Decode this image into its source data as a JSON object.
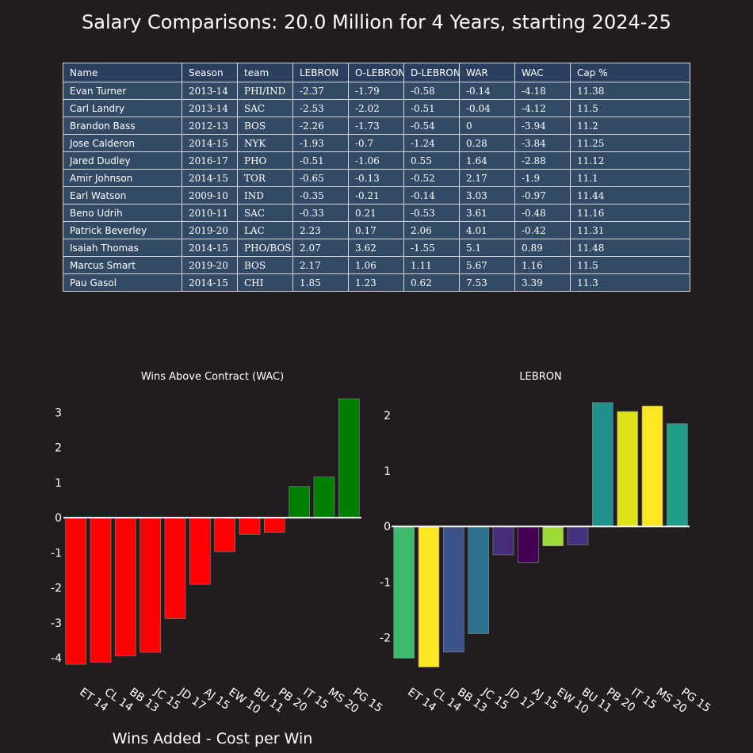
{
  "title": "Salary Comparisons: 20.0 Million for 4 Years, starting 2024-25",
  "table": {
    "columns": [
      "Name",
      "Season",
      "team",
      "LEBRON",
      "O-LEBRON",
      "D-LEBRON",
      "WAR",
      "WAC",
      "Cap %"
    ],
    "rows": [
      [
        "Evan Turner",
        "2013-14",
        "PHI/IND",
        "-2.37",
        "-1.79",
        "-0.58",
        "-0.14",
        "-4.18",
        "11.38"
      ],
      [
        "Carl Landry",
        "2013-14",
        "SAC",
        "-2.53",
        "-2.02",
        "-0.51",
        "-0.04",
        "-4.12",
        "11.5"
      ],
      [
        "Brandon Bass",
        "2012-13",
        "BOS",
        "-2.26",
        "-1.73",
        "-0.54",
        "0",
        "-3.94",
        "11.2"
      ],
      [
        "Jose Calderon",
        "2014-15",
        "NYK",
        "-1.93",
        "-0.7",
        "-1.24",
        "0.28",
        "-3.84",
        "11.25"
      ],
      [
        "Jared Dudley",
        "2016-17",
        "PHO",
        "-0.51",
        "-1.06",
        "0.55",
        "1.64",
        "-2.88",
        "11.12"
      ],
      [
        "Amir Johnson",
        "2014-15",
        "TOR",
        "-0.65",
        "-0.13",
        "-0.52",
        "2.17",
        "-1.9",
        "11.1"
      ],
      [
        "Earl Watson",
        "2009-10",
        "IND",
        "-0.35",
        "-0.21",
        "-0.14",
        "3.03",
        "-0.97",
        "11.44"
      ],
      [
        "Beno Udrih",
        "2010-11",
        "SAC",
        "-0.33",
        "0.21",
        "-0.53",
        "3.61",
        "-0.48",
        "11.16"
      ],
      [
        "Patrick Beverley",
        "2019-20",
        "LAC",
        "2.23",
        "0.17",
        "2.06",
        "4.01",
        "-0.42",
        "11.31"
      ],
      [
        "Isaiah Thomas",
        "2014-15",
        "PHO/BOS",
        "2.07",
        "3.62",
        "-1.55",
        "5.1",
        "0.89",
        "11.48"
      ],
      [
        "Marcus Smart",
        "2019-20",
        "BOS",
        "2.17",
        "1.06",
        "1.11",
        "5.67",
        "1.16",
        "11.5"
      ],
      [
        "Pau Gasol",
        "2014-15",
        "CHI",
        "1.85",
        "1.23",
        "0.62",
        "7.53",
        "3.39",
        "11.3"
      ]
    ]
  },
  "x_axis_title": "Wins Added - Cost per Win",
  "chart_data": [
    {
      "type": "bar",
      "title": "Wins Above Contract (WAC)",
      "categories": [
        "ET 14",
        "CL 14",
        "BB 13",
        "JC 15",
        "JD 17",
        "AJ 15",
        "EW 10",
        "BU 11",
        "PB 20",
        "IT 15",
        "MS 20",
        "PG 15"
      ],
      "values": [
        -4.18,
        -4.12,
        -3.94,
        -3.84,
        -2.88,
        -1.9,
        -0.97,
        -0.48,
        -0.42,
        0.89,
        1.16,
        3.39
      ],
      "colors": [
        "#ff0000",
        "#ff0000",
        "#ff0000",
        "#ff0000",
        "#ff0000",
        "#ff0000",
        "#ff0000",
        "#ff0000",
        "#ff0000",
        "#008000",
        "#008000",
        "#008000"
      ],
      "yticks": [
        3,
        2,
        1,
        0,
        -1,
        -2,
        -3,
        -4
      ],
      "ylim": [
        -4.45,
        3.55
      ]
    },
    {
      "type": "bar",
      "title": "LEBRON",
      "categories": [
        "ET 14",
        "CL 14",
        "BB 13",
        "JC 15",
        "JD 17",
        "AJ 15",
        "EW 10",
        "BU 11",
        "PB 20",
        "IT 15",
        "MS 20",
        "PG 15"
      ],
      "values": [
        -2.37,
        -2.53,
        -2.26,
        -1.93,
        -0.51,
        -0.65,
        -0.35,
        -0.33,
        2.23,
        2.07,
        2.17,
        1.85
      ],
      "colors": [
        "#3dba6e",
        "#fde725",
        "#3b528b",
        "#2c728e",
        "#472d7b",
        "#440154",
        "#a0da39",
        "#46327e",
        "#21918c",
        "#dde318",
        "#fde725",
        "#1f9e89"
      ],
      "yticks": [
        2,
        1,
        0,
        -1,
        -2
      ],
      "ylim": [
        -2.65,
        2.4
      ]
    }
  ]
}
